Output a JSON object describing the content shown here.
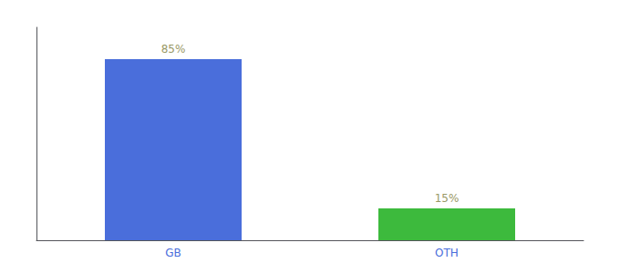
{
  "chart_data": {
    "type": "bar",
    "categories": [
      "GB",
      "OTH"
    ],
    "values": [
      85,
      15
    ],
    "value_labels": [
      "85%",
      "15%"
    ],
    "colors": [
      "#4a6edb",
      "#3dba3d"
    ],
    "ylim": [
      0,
      100
    ],
    "data_labels": true,
    "tick_labels": "x",
    "grid": false
  }
}
